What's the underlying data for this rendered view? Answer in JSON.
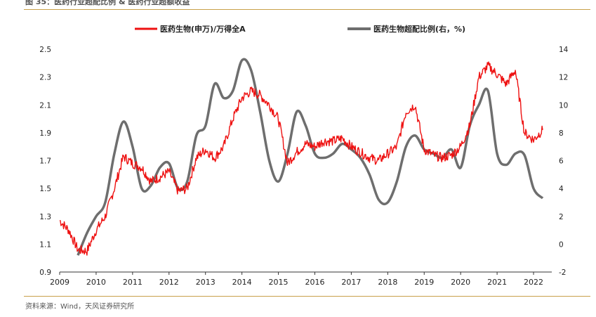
{
  "figure_title": "图 35：医药行业超配比例 & 医药行业超额收益",
  "source_note": "资料来源：Wind，天风证券研究所",
  "colors": {
    "series_left": "#ee1111",
    "series_right": "#6e6e6e",
    "accent_rule": "#c8a04a"
  },
  "chart_data": {
    "type": "line",
    "title": "图 35：医药行业超配比例 & 医药行业超额收益",
    "x": [
      2009.0,
      2009.25,
      2009.5,
      2009.75,
      2010.0,
      2010.25,
      2010.5,
      2010.75,
      2011.0,
      2011.25,
      2011.5,
      2011.75,
      2012.0,
      2012.25,
      2012.5,
      2012.75,
      2013.0,
      2013.25,
      2013.5,
      2013.75,
      2014.0,
      2014.25,
      2014.5,
      2014.75,
      2015.0,
      2015.25,
      2015.5,
      2015.75,
      2016.0,
      2016.25,
      2016.5,
      2016.75,
      2017.0,
      2017.25,
      2017.5,
      2017.75,
      2018.0,
      2018.25,
      2018.5,
      2018.75,
      2019.0,
      2019.25,
      2019.5,
      2019.75,
      2020.0,
      2020.25,
      2020.5,
      2020.75,
      2021.0,
      2021.25,
      2021.5,
      2021.75,
      2022.0,
      2022.25
    ],
    "series": [
      {
        "name": "医药生物(申万)/万得全A",
        "axis": "left",
        "values": [
          1.27,
          1.2,
          1.06,
          1.05,
          1.2,
          1.3,
          1.5,
          1.73,
          1.68,
          1.65,
          1.55,
          1.58,
          1.62,
          1.48,
          1.5,
          1.72,
          1.78,
          1.72,
          1.8,
          2.0,
          2.15,
          2.2,
          2.17,
          2.1,
          2.0,
          1.68,
          1.76,
          1.82,
          1.8,
          1.84,
          1.84,
          1.86,
          1.8,
          1.76,
          1.72,
          1.7,
          1.75,
          1.8,
          2.05,
          2.1,
          1.78,
          1.74,
          1.72,
          1.74,
          1.8,
          1.95,
          2.3,
          2.38,
          2.32,
          2.25,
          2.35,
          1.9,
          1.85,
          1.92
        ]
      },
      {
        "name": "医药生物超配比例(右，%)",
        "axis": "right",
        "values": [
          null,
          null,
          -0.8,
          0.8,
          2.0,
          3.0,
          6.5,
          8.8,
          7.0,
          4.0,
          4.2,
          5.5,
          5.8,
          4.0,
          4.5,
          7.8,
          8.5,
          11.5,
          10.5,
          11.0,
          13.2,
          12.5,
          9.5,
          6.0,
          4.5,
          6.5,
          9.5,
          8.5,
          6.5,
          6.2,
          6.5,
          7.2,
          6.8,
          6.2,
          5.0,
          3.2,
          3.0,
          4.5,
          7.0,
          7.8,
          6.8,
          6.5,
          6.2,
          6.8,
          5.5,
          8.5,
          10.0,
          11.0,
          6.5,
          5.7,
          6.5,
          6.4,
          4.0,
          3.3
        ]
      }
    ],
    "xlabel": "",
    "ylabel_left": "",
    "ylabel_right": "",
    "x_ticks": [
      "2009",
      "2010",
      "2011",
      "2012",
      "2013",
      "2014",
      "2015",
      "2016",
      "2017",
      "2018",
      "2019",
      "2020",
      "2021",
      "2022"
    ],
    "xlim": [
      2009.0,
      2022.5
    ],
    "ylim_left": [
      0.9,
      2.5
    ],
    "ylim_right": [
      -2,
      14
    ],
    "y_ticks_left": [
      "0.9",
      "1.1",
      "1.3",
      "1.5",
      "1.7",
      "1.9",
      "2.1",
      "2.3",
      "2.5"
    ],
    "y_ticks_right": [
      "-2",
      "0",
      "2",
      "4",
      "6",
      "8",
      "10",
      "12",
      "14"
    ],
    "legend_position": "top-center",
    "grid": false
  }
}
